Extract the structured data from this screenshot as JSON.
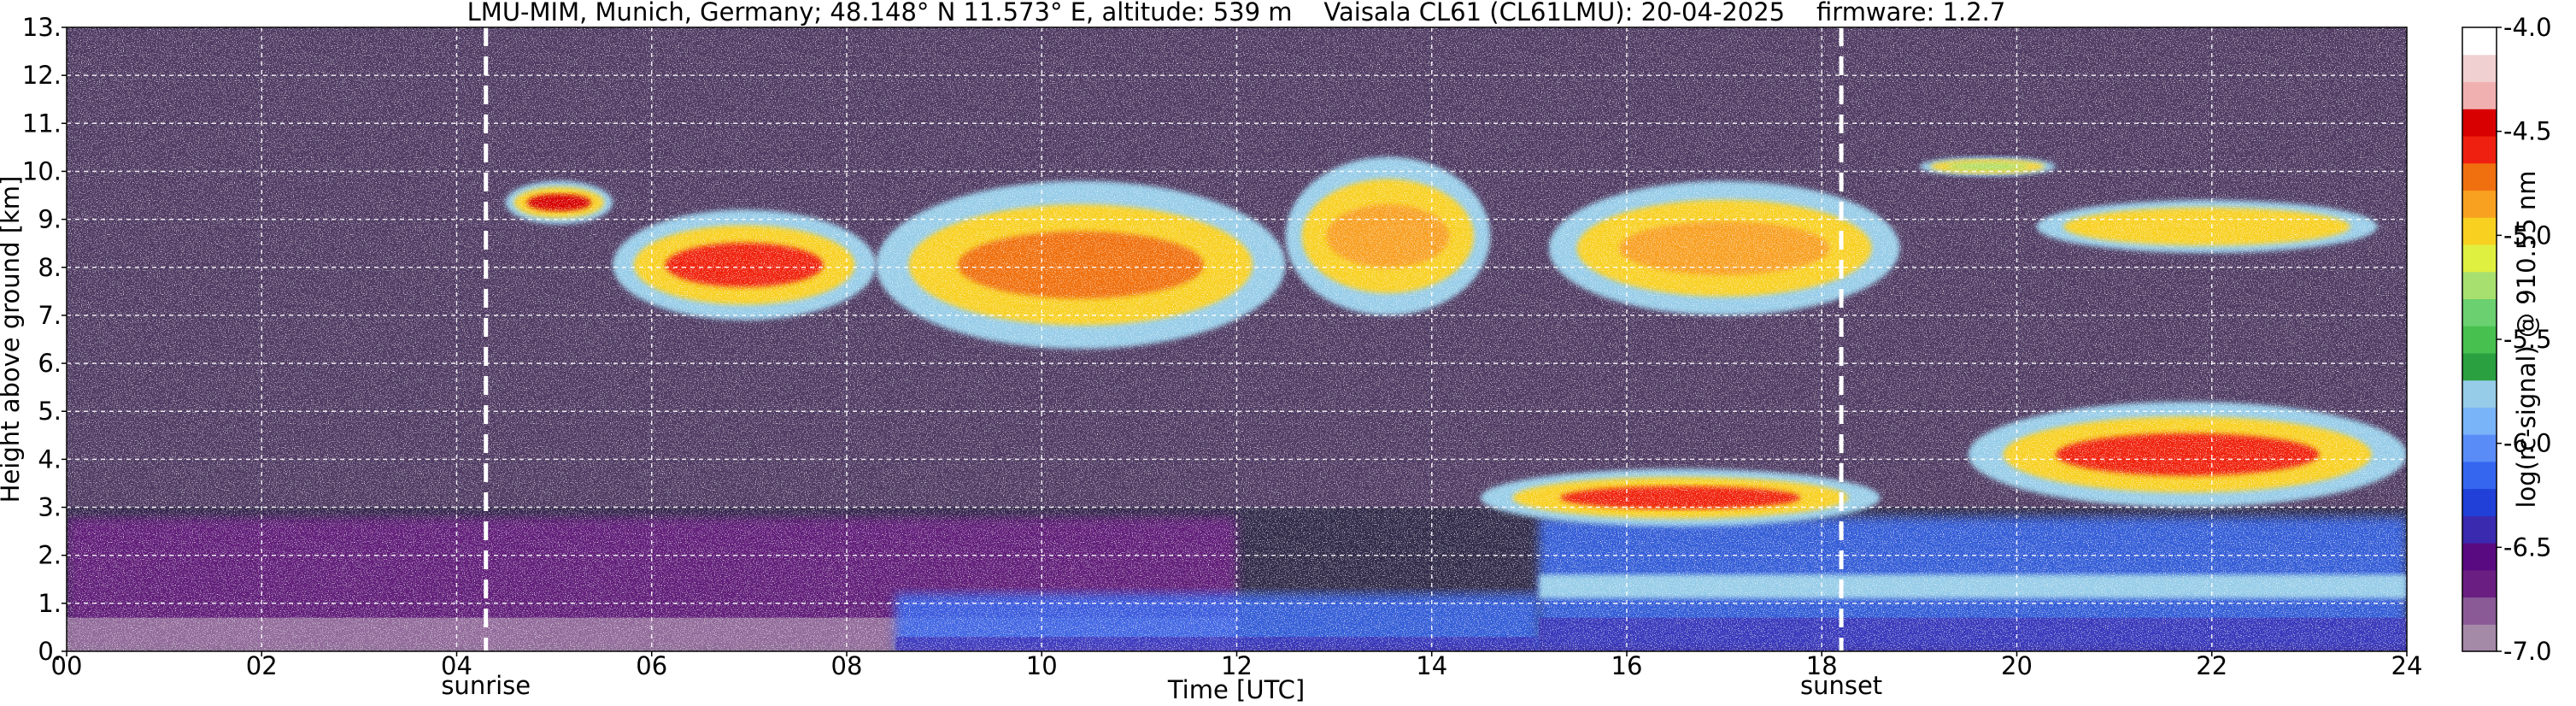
{
  "chart_data": {
    "type": "heatmap",
    "title": "LMU-MIM, Munich, Germany; 48.148° N 11.573° E, altitude: 539 m    Vaisala CL61 (CL61LMU): 20-04-2025    firmware: 1.2.7",
    "xlabel": "Time [UTC]",
    "ylabel": "Height above ground [km]",
    "xlim": [
      0,
      24
    ],
    "ylim": [
      0,
      13
    ],
    "x_ticks": [
      "00",
      "02",
      "04",
      "06",
      "08",
      "10",
      "12",
      "14",
      "16",
      "18",
      "20",
      "22",
      "24"
    ],
    "y_ticks": [
      "0.",
      "1.",
      "2.",
      "3.",
      "4.",
      "5.",
      "6.",
      "7.",
      "8.",
      "9.",
      "10.",
      "11.",
      "12.",
      "13."
    ],
    "grid": true,
    "markers": [
      {
        "label": "sunrise",
        "time_h": 4.3
      },
      {
        "label": "sunset",
        "time_h": 18.2
      }
    ],
    "colorbar": {
      "label": "log(rc-signal) @ 910.55 nm",
      "range": [
        -7.0,
        -4.0
      ],
      "ticks": [
        "-4.0",
        "-4.5",
        "-5.0",
        "-5.5",
        "-6.0",
        "-6.5",
        "-7.0"
      ],
      "colors": [
        "#a58aa8",
        "#8a5a96",
        "#6a1e82",
        "#5a0a80",
        "#3a2ab0",
        "#2040d8",
        "#3466f0",
        "#5a8cf8",
        "#7ab4f8",
        "#96cce8",
        "#2aa040",
        "#48c050",
        "#6ad070",
        "#a8e070",
        "#e0f040",
        "#f8d020",
        "#f8a020",
        "#f07010",
        "#f02010",
        "#d80000",
        "#f0b0b0",
        "#f0d0d0",
        "#ffffff"
      ]
    },
    "features": [
      {
        "type": "background_noise",
        "t": [
          0,
          24
        ],
        "z": [
          3,
          13
        ],
        "log_signal": -6.8
      },
      {
        "type": "boundary_layer",
        "t": [
          0,
          12
        ],
        "z": [
          0,
          2.8
        ],
        "log_signal": -6.7
      },
      {
        "type": "surface_layer",
        "t": [
          8.5,
          15.1
        ],
        "z": [
          0,
          1.2
        ],
        "log_signal": -6.2
      },
      {
        "type": "boundary_layer",
        "t": [
          15.1,
          24
        ],
        "z": [
          0,
          2.8
        ],
        "log_signal": -6.1
      },
      {
        "type": "aerosol_layer",
        "t": [
          15.1,
          24
        ],
        "z": [
          1.1,
          1.6
        ],
        "log_signal": -5.8
      },
      {
        "type": "cloud",
        "t": [
          4.5,
          5.6
        ],
        "z": [
          8.9,
          9.8
        ],
        "log_signal": -4.5
      },
      {
        "type": "cloud",
        "t": [
          5.6,
          8.3
        ],
        "z": [
          6.9,
          9.2
        ],
        "log_signal": -4.6
      },
      {
        "type": "cloud",
        "t": [
          8.3,
          12.5
        ],
        "z": [
          6.3,
          9.8
        ],
        "log_signal": -4.7
      },
      {
        "type": "cloud",
        "t": [
          12.5,
          14.6
        ],
        "z": [
          7.0,
          10.3
        ],
        "log_signal": -4.8
      },
      {
        "type": "cloud",
        "t": [
          15.2,
          18.8
        ],
        "z": [
          7.0,
          9.8
        ],
        "log_signal": -4.9
      },
      {
        "type": "cloud",
        "t": [
          19.0,
          20.4
        ],
        "z": [
          9.9,
          10.3
        ],
        "log_signal": -5.2
      },
      {
        "type": "cloud",
        "t": [
          20.2,
          23.7
        ],
        "z": [
          8.3,
          9.4
        ],
        "log_signal": -5.0
      },
      {
        "type": "cloud",
        "t": [
          14.5,
          18.6
        ],
        "z": [
          2.6,
          3.8
        ],
        "log_signal": -4.6
      },
      {
        "type": "cloud",
        "t": [
          19.5,
          24
        ],
        "z": [
          3.0,
          5.2
        ],
        "log_signal": -4.6
      }
    ]
  }
}
